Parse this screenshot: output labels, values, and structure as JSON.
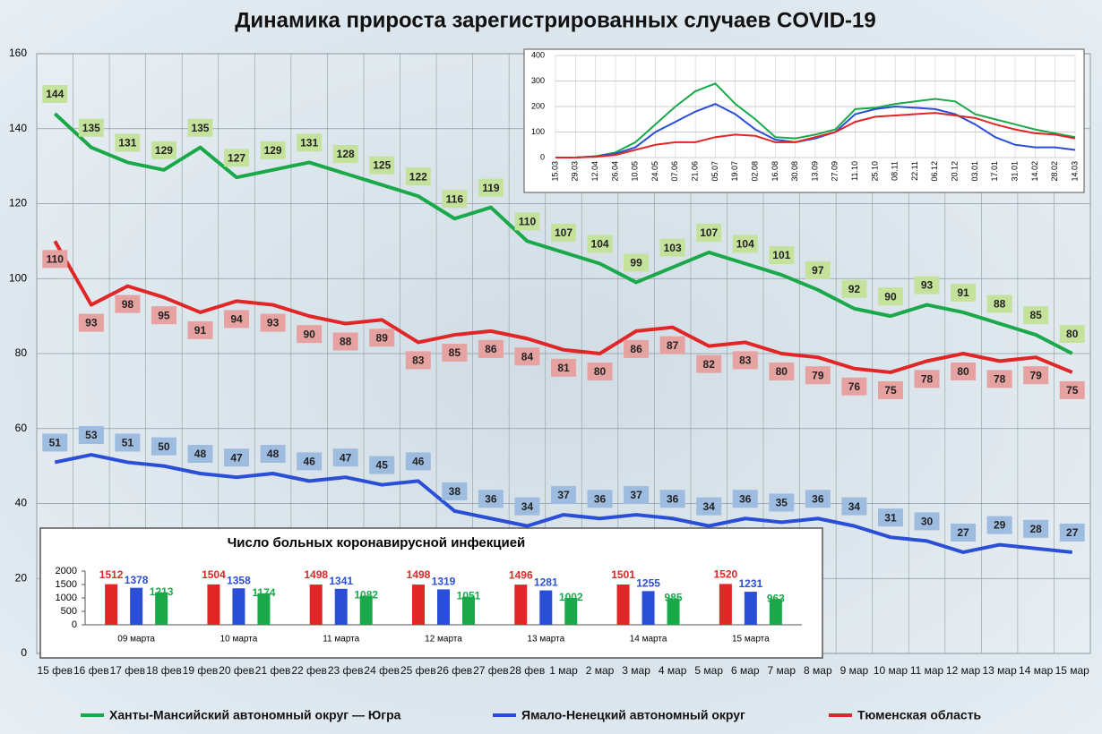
{
  "chart_data": [
    {
      "type": "line",
      "title": "Динамика прироста зарегистрированных случаев COVID-19",
      "categories": [
        "15 фев",
        "16 фев",
        "17 фев",
        "18 фев",
        "19 фев",
        "20 фев",
        "21 фев",
        "22 фев",
        "23 фев",
        "24 фев",
        "25 фев",
        "26 фев",
        "27 фев",
        "28 фев",
        "1 мар",
        "2 мар",
        "3 мар",
        "4 мар",
        "5 мар",
        "6 мар",
        "7 мар",
        "8 мар",
        "9 мар",
        "10 мар",
        "11 мар",
        "12 мар",
        "13 мар",
        "14 мар",
        "15 мар"
      ],
      "series": [
        {
          "name": "Ханты-Мансийский автономный округ — Югра",
          "color": "#1aa94a",
          "label_color": "#c5e29c",
          "values": [
            144,
            135,
            131,
            129,
            135,
            127,
            129,
            131,
            128,
            125,
            122,
            116,
            119,
            110,
            107,
            104,
            99,
            103,
            107,
            104,
            101,
            97,
            92,
            90,
            93,
            91,
            88,
            85,
            80
          ]
        },
        {
          "name": "Ямало-Ненецкий автономный округ",
          "color": "#2a4fd6",
          "label_color": "#9dbce0",
          "values": [
            51,
            53,
            51,
            50,
            48,
            47,
            48,
            46,
            47,
            45,
            46,
            38,
            36,
            34,
            37,
            36,
            37,
            36,
            34,
            36,
            35,
            36,
            34,
            31,
            30,
            27,
            29,
            28,
            27
          ]
        },
        {
          "name": "Тюменская область",
          "color": "#e02626",
          "label_color": "#e6a1a1",
          "values": [
            110,
            93,
            98,
            95,
            91,
            94,
            93,
            90,
            88,
            89,
            83,
            85,
            86,
            84,
            81,
            80,
            86,
            87,
            82,
            83,
            80,
            79,
            76,
            75,
            78,
            80,
            78,
            79,
            75
          ]
        }
      ],
      "ylim": [
        0,
        160
      ],
      "yticks": [
        0,
        20,
        40,
        60,
        80,
        100,
        120,
        140,
        160
      ],
      "grid": true,
      "legend": "bottom"
    },
    {
      "type": "line",
      "categories": [
        "15.03",
        "29.03",
        "12.04",
        "26.04",
        "10.05",
        "24.05",
        "07.06",
        "21.06",
        "05.07",
        "19.07",
        "02.08",
        "16.08",
        "30.08",
        "13.09",
        "27.09",
        "11.10",
        "25.10",
        "08.11",
        "22.11",
        "06.12",
        "20.12",
        "03.01",
        "17.01",
        "31.01",
        "14.02",
        "28.02",
        "14.03"
      ],
      "series": [
        {
          "color": "#1aa94a",
          "values": [
            0,
            0,
            5,
            20,
            60,
            130,
            200,
            260,
            290,
            210,
            150,
            80,
            75,
            90,
            110,
            190,
            195,
            210,
            220,
            230,
            220,
            170,
            150,
            130,
            110,
            95,
            80
          ]
        },
        {
          "color": "#2a4fd6",
          "values": [
            0,
            0,
            5,
            15,
            40,
            100,
            140,
            180,
            210,
            170,
            110,
            70,
            60,
            75,
            100,
            170,
            190,
            200,
            195,
            190,
            170,
            130,
            80,
            50,
            40,
            40,
            30
          ]
        },
        {
          "color": "#e02626",
          "values": [
            0,
            0,
            3,
            10,
            30,
            50,
            60,
            60,
            80,
            90,
            85,
            60,
            60,
            80,
            100,
            140,
            160,
            165,
            170,
            175,
            165,
            155,
            130,
            110,
            95,
            90,
            75
          ]
        }
      ],
      "ylim": [
        0,
        400
      ],
      "yticks": [
        0,
        100,
        200,
        300,
        400
      ],
      "grid": true
    },
    {
      "type": "bar",
      "title": "Число больных  коронавирусной  инфекцией",
      "categories": [
        "09 марта",
        "10 марта",
        "11 марта",
        "12 марта",
        "13 марта",
        "14 марта",
        "15 марта"
      ],
      "series": [
        {
          "color": "#e02626",
          "values": [
            1512,
            1504,
            1498,
            1498,
            1496,
            1501,
            1520
          ]
        },
        {
          "color": "#2a4fd6",
          "values": [
            1378,
            1358,
            1341,
            1319,
            1281,
            1255,
            1231
          ]
        },
        {
          "color": "#1aa94a",
          "values": [
            1213,
            1174,
            1082,
            1051,
            1002,
            985,
            963
          ]
        }
      ],
      "ylim": [
        0,
        2000
      ],
      "yticks": [
        0,
        500,
        1000,
        1500,
        2000
      ]
    }
  ]
}
